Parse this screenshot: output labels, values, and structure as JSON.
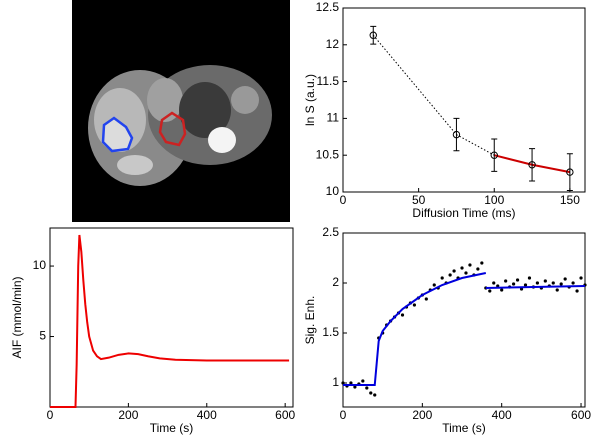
{
  "chart_data": [
    {
      "type": "scatter",
      "xlabel": "Diffusion Time (ms)",
      "ylabel": "ln S (a.u.)",
      "xlim": [
        0,
        160
      ],
      "xticks": [
        0,
        50,
        100,
        150
      ],
      "ylim": [
        10,
        12.5
      ],
      "yticks": [
        10,
        10.5,
        11,
        11.5,
        12,
        12.5
      ],
      "series": [
        {
          "style": "markers",
          "color": "#000000",
          "x": [
            20,
            75,
            100,
            125,
            150
          ],
          "values": [
            12.13,
            10.78,
            10.5,
            10.37,
            10.27
          ],
          "errors": [
            0.12,
            0.22,
            0.22,
            0.22,
            0.25
          ]
        },
        {
          "style": "dotted",
          "color": "#000000",
          "x": [
            20,
            75,
            100
          ],
          "values": [
            12.13,
            10.78,
            10.5
          ]
        },
        {
          "style": "solid",
          "color": "#cc0000",
          "x": [
            100,
            125,
            150
          ],
          "values": [
            10.5,
            10.37,
            10.27
          ]
        }
      ]
    },
    {
      "type": "line",
      "xlabel": "Time (s)",
      "ylabel": "AIF (mmol/min)",
      "xlim": [
        0,
        620
      ],
      "xticks": [
        0,
        200,
        400,
        600
      ],
      "ylim": [
        0,
        12.7
      ],
      "yticks": [
        5,
        10
      ],
      "series": [
        {
          "style": "solid",
          "color": "#ee0000",
          "x": [
            0,
            60,
            65,
            68,
            72,
            75,
            80,
            85,
            90,
            95,
            100,
            110,
            120,
            130,
            150,
            175,
            200,
            225,
            250,
            280,
            320,
            400,
            500,
            610
          ],
          "values": [
            0,
            0,
            0,
            3,
            10,
            12.2,
            11,
            9,
            7.3,
            6,
            5,
            4,
            3.6,
            3.4,
            3.5,
            3.7,
            3.8,
            3.75,
            3.6,
            3.45,
            3.35,
            3.3,
            3.3,
            3.3
          ]
        }
      ]
    },
    {
      "type": "line",
      "xlabel": "Time (s)",
      "ylabel": "Sig. Enh.",
      "xlim": [
        0,
        610
      ],
      "xticks": [
        0,
        200,
        400,
        600
      ],
      "ylim": [
        0.76,
        2.5
      ],
      "yticks": [
        1,
        1.5,
        2,
        2.5
      ],
      "series": [
        {
          "style": "dots",
          "color": "#000000",
          "x": [
            0,
            10,
            20,
            30,
            40,
            50,
            60,
            70,
            80,
            90,
            100,
            110,
            120,
            130,
            140,
            150,
            160,
            170,
            180,
            190,
            200,
            210,
            220,
            230,
            240,
            250,
            260,
            270,
            280,
            290,
            300,
            310,
            320,
            330,
            340,
            350,
            360,
            370,
            380,
            390,
            400,
            410,
            420,
            430,
            440,
            450,
            460,
            470,
            480,
            490,
            500,
            510,
            520,
            530,
            540,
            550,
            560,
            570,
            580,
            590,
            600,
            610
          ],
          "values": [
            1.0,
            0.97,
            1.0,
            0.96,
            0.99,
            1.02,
            0.95,
            0.9,
            0.88,
            1.45,
            1.5,
            1.58,
            1.62,
            1.66,
            1.7,
            1.68,
            1.76,
            1.8,
            1.78,
            1.85,
            1.88,
            1.84,
            1.93,
            1.98,
            1.95,
            2.05,
            2.0,
            2.08,
            2.12,
            2.05,
            2.15,
            2.1,
            2.18,
            2.08,
            2.14,
            2.2,
            1.95,
            1.92,
            2.0,
            1.97,
            1.93,
            2.02,
            1.96,
            1.99,
            2.03,
            1.94,
            1.98,
            2.05,
            1.96,
            2.0,
            1.95,
            2.02,
            1.97,
            2.0,
            1.93,
            1.99,
            2.04,
            1.96,
            2.0,
            1.92,
            2.05,
            1.98
          ]
        },
        {
          "style": "solid",
          "color": "#0000dd",
          "x": [
            0,
            80,
            85,
            90,
            100,
            120,
            150,
            200,
            250,
            300,
            360,
            360,
            360,
            610
          ],
          "values": [
            0.98,
            0.98,
            1.2,
            1.42,
            1.52,
            1.62,
            1.74,
            1.88,
            1.98,
            2.05,
            2.1,
            null,
            1.95,
            1.97
          ]
        }
      ]
    }
  ]
}
